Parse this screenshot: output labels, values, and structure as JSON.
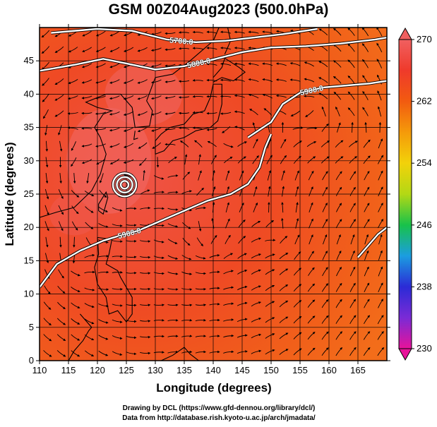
{
  "title": "GSM 00Z04Aug2023 (500.0hPa)",
  "credits": {
    "line1": "Drawing by DCL (https://www.gfd-dennou.org/library/dcl/)",
    "line2": "Data from http://database.rish.kyoto-u.ac.jp/arch/jmadata/"
  },
  "chart_data": {
    "type": "heatmap",
    "title": "GSM 00Z04Aug2023 (500.0hPa)",
    "xlabel": "Longitude (degrees)",
    "ylabel": "Latitude (degrees)",
    "xlim": [
      110,
      170
    ],
    "ylim": [
      0,
      50
    ],
    "x_ticks": [
      110,
      115,
      120,
      125,
      130,
      135,
      140,
      145,
      150,
      155,
      160,
      165
    ],
    "y_ticks": [
      0,
      5,
      10,
      15,
      20,
      25,
      30,
      35,
      40,
      45
    ],
    "grid": true,
    "colorbar": {
      "range": [
        230,
        270
      ],
      "ticks": [
        230,
        238,
        246,
        254,
        262,
        270
      ],
      "colors": [
        "#e8139a",
        "#7a2bd6",
        "#2b2bd6",
        "#1b9de0",
        "#18c24a",
        "#b3d815",
        "#f2d20a",
        "#f59a0a",
        "#f25b10",
        "#ef3a2b",
        "#f06060"
      ]
    },
    "contours": [
      {
        "label": "5700.0",
        "points": [
          [
            112,
            49.2
          ],
          [
            120,
            49.8
          ],
          [
            126,
            49.5
          ],
          [
            132,
            48.2
          ],
          [
            137,
            47.8
          ],
          [
            142,
            48.0
          ],
          [
            147,
            48.5
          ],
          [
            152,
            49.0
          ],
          [
            158,
            49.8
          ]
        ]
      },
      {
        "label": "5800.0",
        "points": [
          [
            110,
            43.5
          ],
          [
            116,
            44.4
          ],
          [
            121,
            45.3
          ],
          [
            125,
            44.6
          ],
          [
            130,
            43.7
          ],
          [
            135,
            44.2
          ],
          [
            140,
            45.2
          ],
          [
            145,
            46.3
          ],
          [
            150,
            47.0
          ],
          [
            156,
            47.2
          ],
          [
            162,
            47.6
          ],
          [
            168,
            48.2
          ],
          [
            170,
            48.5
          ]
        ]
      },
      {
        "label": "5900.0",
        "points": [
          [
            146,
            33.5
          ],
          [
            150,
            35.8
          ],
          [
            152,
            38.5
          ],
          [
            155,
            40.2
          ],
          [
            159,
            41.0
          ],
          [
            163,
            41.3
          ],
          [
            167,
            41.6
          ],
          [
            170,
            42.0
          ]
        ]
      },
      {
        "label": "5900.0",
        "points": [
          [
            110,
            11.0
          ],
          [
            113,
            14.5
          ],
          [
            117,
            16.5
          ],
          [
            121,
            18.0
          ],
          [
            124,
            18.8
          ],
          [
            127,
            19.5
          ],
          [
            131,
            21.0
          ],
          [
            135,
            22.5
          ],
          [
            139,
            24.0
          ],
          [
            143,
            25.0
          ],
          [
            146,
            26.5
          ],
          [
            148,
            29.0
          ],
          [
            149,
            32.0
          ],
          [
            150,
            34.0
          ]
        ]
      },
      {
        "label": "",
        "points": [
          [
            170,
            20.0
          ],
          [
            168.5,
            19.0
          ],
          [
            166,
            16.5
          ],
          [
            165,
            15.5
          ]
        ]
      }
    ],
    "centers": [
      {
        "lon": 124.7,
        "lat": 26.4,
        "ring_count": 3
      }
    ],
    "vortices": [
      {
        "lon": 114.0,
        "lat": 35.0
      },
      {
        "lon": 116.0,
        "lat": 27.5
      },
      {
        "lon": 132.5,
        "lat": 30.5
      },
      {
        "lon": 145.0,
        "lat": 34.5
      },
      {
        "lon": 158.0,
        "lat": 37.0
      },
      {
        "lon": 139.0,
        "lat": 18.0
      },
      {
        "lon": 151.5,
        "lat": 19.0
      },
      {
        "lon": 116.0,
        "lat": 14.5
      },
      {
        "lon": 166.0,
        "lat": 34.5
      }
    ]
  }
}
